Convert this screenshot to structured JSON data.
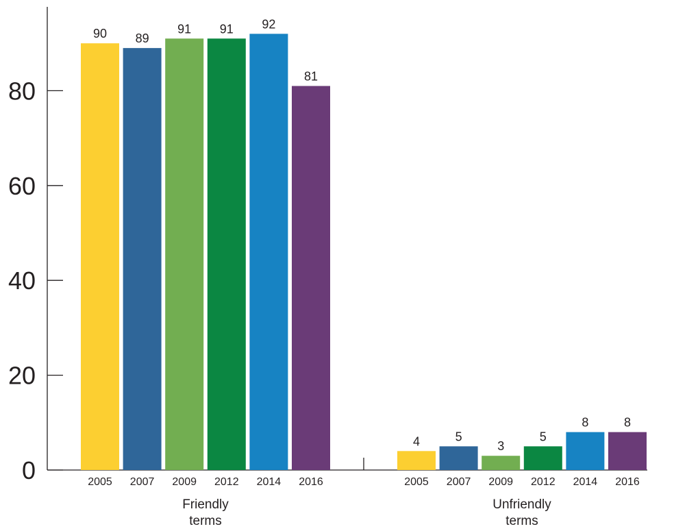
{
  "chart_data": {
    "type": "bar",
    "title": "",
    "xlabel": "",
    "ylabel": "",
    "ylim": [
      0,
      100
    ],
    "yticks": [
      0,
      20,
      40,
      60,
      80
    ],
    "grid": false,
    "legend": "none",
    "groups": [
      {
        "label_lines": [
          "Friendly",
          "terms"
        ],
        "categories": [
          "2005",
          "2007",
          "2009",
          "2012",
          "2014",
          "2016"
        ],
        "values": [
          90,
          89,
          91,
          91,
          92,
          81
        ]
      },
      {
        "label_lines": [
          "Unfriendly",
          "terms"
        ],
        "categories": [
          "2005",
          "2007",
          "2009",
          "2012",
          "2014",
          "2016"
        ],
        "values": [
          4,
          5,
          3,
          5,
          8,
          8
        ]
      }
    ],
    "colors": [
      "#fccf31",
      "#2f6699",
      "#72ae51",
      "#0b8742",
      "#1783c3",
      "#6a3b77"
    ]
  }
}
